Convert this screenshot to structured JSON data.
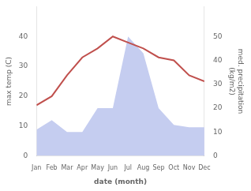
{
  "chart_data": {
    "type": "line",
    "xlabel": "date (month)",
    "ylabel": "max temp (C)",
    "y2label": "med. precipitation\n(kg/m2)",
    "categories": [
      "Jan",
      "Feb",
      "Mar",
      "Apr",
      "May",
      "Jun",
      "Jul",
      "Aug",
      "Sep",
      "Oct",
      "Nov",
      "Dec"
    ],
    "series": [
      {
        "type": "line",
        "color": "#c0504d",
        "values": [
          17,
          20,
          27,
          33,
          36,
          40,
          38,
          36,
          33,
          32,
          27,
          25
        ]
      },
      {
        "type": "area",
        "color": "#c5cdf0",
        "axis": "y2",
        "values": [
          11,
          15,
          10,
          10,
          20,
          20,
          50,
          43,
          20,
          13,
          12,
          12
        ]
      }
    ],
    "ylim": [
      0,
      50
    ],
    "yticks": [
      0,
      10,
      20,
      30,
      40
    ],
    "y2lim": [
      0,
      62.5
    ],
    "y2ticks": [
      0,
      10,
      20,
      30,
      40,
      50
    ],
    "grid": false
  }
}
